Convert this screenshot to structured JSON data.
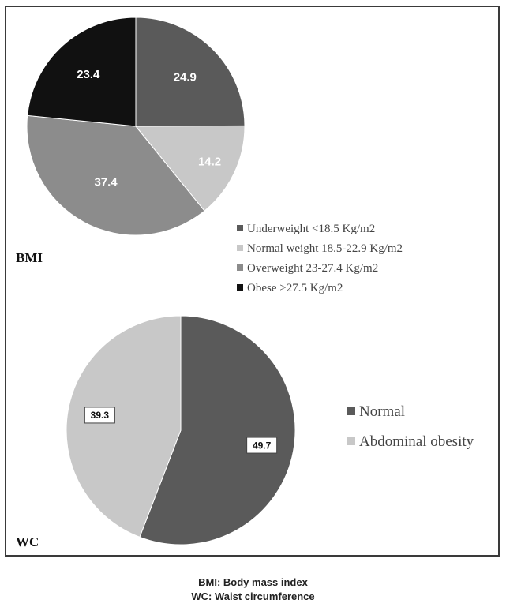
{
  "chart_data": [
    {
      "type": "pie",
      "panel_label": "BMI",
      "categories": [
        "Underweight <18.5 Kg/m2",
        "Normal weight 18.5-22.9 Kg/m2",
        "Overweight 23-27.4 Kg/m2",
        "Obese >27.5 Kg/m2"
      ],
      "values": [
        24.9,
        14.2,
        37.4,
        23.4
      ],
      "data_labels": [
        "24.9",
        "14.2",
        "37.4",
        "23.4"
      ],
      "colors": [
        "#5a5a5a",
        "#c8c8c8",
        "#8c8c8c",
        "#111111"
      ],
      "legend": "right"
    },
    {
      "type": "pie",
      "panel_label": "WC",
      "categories": [
        "Normal",
        "Abdominal obesity"
      ],
      "values": [
        49.7,
        39.3
      ],
      "data_labels": [
        "49.7",
        "39.3"
      ],
      "colors": [
        "#5a5a5a",
        "#c8c8c8"
      ],
      "legend": "right"
    }
  ],
  "captions": [
    "BMI: Body mass index",
    "WC: Waist circumference"
  ]
}
